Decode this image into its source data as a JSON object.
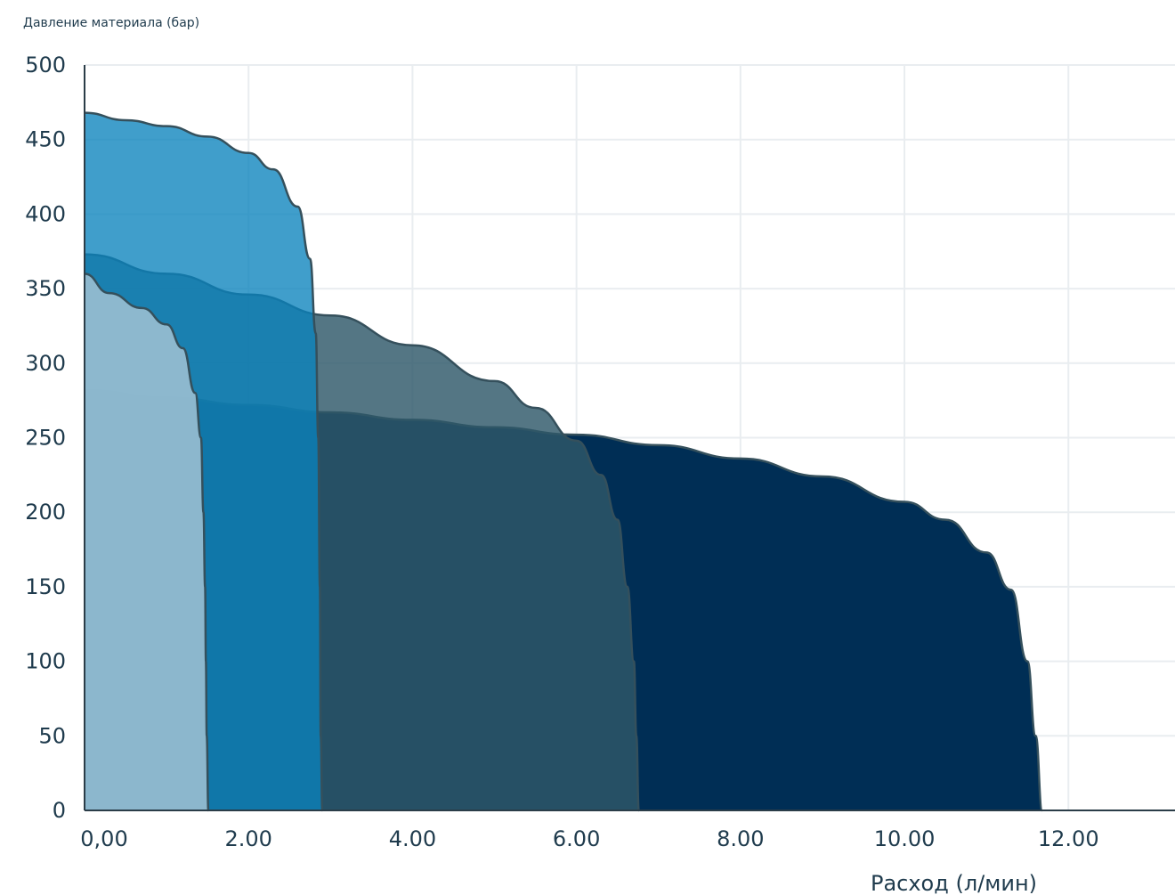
{
  "chart_data": {
    "type": "area",
    "ylabel": "Давление материала (бар)",
    "xlabel": "Расход (л/мин)",
    "xlim": [
      0,
      13.3
    ],
    "ylim": [
      0,
      500
    ],
    "grid": true,
    "x_ticks": [
      {
        "value": 0,
        "label": "0,00"
      },
      {
        "value": 2,
        "label": "2.00"
      },
      {
        "value": 4,
        "label": "4.00"
      },
      {
        "value": 6,
        "label": "6.00"
      },
      {
        "value": 8,
        "label": "8.00"
      },
      {
        "value": 10,
        "label": "10.00"
      },
      {
        "value": 12,
        "label": "12.00"
      }
    ],
    "y_ticks": [
      {
        "value": 0,
        "label": "0"
      },
      {
        "value": 50,
        "label": "50"
      },
      {
        "value": 100,
        "label": "100"
      },
      {
        "value": 150,
        "label": "150"
      },
      {
        "value": 200,
        "label": "200"
      },
      {
        "value": 250,
        "label": "250"
      },
      {
        "value": 300,
        "label": "300"
      },
      {
        "value": 350,
        "label": "350"
      },
      {
        "value": 400,
        "label": "400"
      },
      {
        "value": 450,
        "label": "450"
      },
      {
        "value": 500,
        "label": "500"
      }
    ],
    "series": [
      {
        "color": "#002e55",
        "opacity": 1,
        "points": [
          [
            0,
            282
          ],
          [
            1,
            277
          ],
          [
            2,
            272
          ],
          [
            3,
            267
          ],
          [
            4,
            262
          ],
          [
            5,
            257
          ],
          [
            6,
            252
          ],
          [
            7,
            245
          ],
          [
            8,
            236
          ],
          [
            9,
            224
          ],
          [
            10,
            207
          ],
          [
            10.5,
            195
          ],
          [
            11,
            173
          ],
          [
            11.3,
            148
          ],
          [
            11.5,
            100
          ],
          [
            11.6,
            50
          ],
          [
            11.68,
            0
          ]
        ]
      },
      {
        "color": "#2e5869",
        "opacity": 0.82,
        "points": [
          [
            0,
            373
          ],
          [
            1,
            360
          ],
          [
            2,
            346
          ],
          [
            3,
            332
          ],
          [
            4,
            312
          ],
          [
            5,
            288
          ],
          [
            5.5,
            270
          ],
          [
            6,
            248
          ],
          [
            6.3,
            225
          ],
          [
            6.5,
            195
          ],
          [
            6.62,
            150
          ],
          [
            6.7,
            100
          ],
          [
            6.73,
            50
          ],
          [
            6.76,
            0
          ]
        ]
      },
      {
        "color": "#0a83bd",
        "opacity": 0.78,
        "points": [
          [
            0,
            468
          ],
          [
            0.5,
            463
          ],
          [
            1,
            459
          ],
          [
            1.5,
            452
          ],
          [
            2,
            441
          ],
          [
            2.3,
            430
          ],
          [
            2.6,
            405
          ],
          [
            2.75,
            370
          ],
          [
            2.82,
            320
          ],
          [
            2.85,
            250
          ],
          [
            2.87,
            150
          ],
          [
            2.88,
            50
          ],
          [
            2.9,
            0
          ]
        ]
      },
      {
        "color": "#a2c2d4",
        "opacity": 0.85,
        "points": [
          [
            0,
            360
          ],
          [
            0.3,
            347
          ],
          [
            0.7,
            337
          ],
          [
            1,
            326
          ],
          [
            1.2,
            310
          ],
          [
            1.35,
            280
          ],
          [
            1.42,
            250
          ],
          [
            1.45,
            200
          ],
          [
            1.47,
            150
          ],
          [
            1.48,
            100
          ],
          [
            1.49,
            50
          ],
          [
            1.51,
            0
          ]
        ]
      }
    ]
  }
}
